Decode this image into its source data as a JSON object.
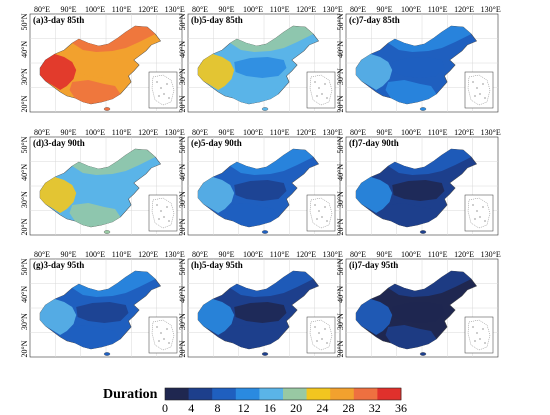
{
  "lon_ticks": [
    "80°E",
    "90°E",
    "100°E",
    "110°E",
    "120°E",
    "130°E"
  ],
  "lat_ticks": [
    "20°N",
    "30°N",
    "40°N",
    "50°N"
  ],
  "panels": [
    {
      "label": "(a)3-day 85th",
      "window_days": 3,
      "percentile": 85,
      "level": 0.78
    },
    {
      "label": "(b)5-day 85th",
      "window_days": 5,
      "percentile": 85,
      "level": 0.42
    },
    {
      "label": "(c)7-day 85th",
      "window_days": 7,
      "percentile": 85,
      "level": 0.25
    },
    {
      "label": "(d)3-day 90th",
      "window_days": 3,
      "percentile": 90,
      "level": 0.45
    },
    {
      "label": "(e)5-day 90th",
      "window_days": 5,
      "percentile": 90,
      "level": 0.22
    },
    {
      "label": "(f)7-day 90th",
      "window_days": 7,
      "percentile": 90,
      "level": 0.1
    },
    {
      "label": "(g)3-day 95th",
      "window_days": 3,
      "percentile": 95,
      "level": 0.2
    },
    {
      "label": "(h)5-day 95th",
      "window_days": 5,
      "percentile": 95,
      "level": 0.06
    },
    {
      "label": "(i)7-day 95th",
      "window_days": 7,
      "percentile": 95,
      "level": 0.03
    }
  ],
  "legend": {
    "title": "Duration",
    "ticks": [
      "0",
      "4",
      "8",
      "12",
      "16",
      "20",
      "24",
      "28",
      "32",
      "36"
    ],
    "colors": [
      "#1f2750",
      "#1d3f8c",
      "#1f5fbf",
      "#2a8ae0",
      "#5ab4e8",
      "#98c9a3",
      "#f2c61f",
      "#f2a12e",
      "#ee7040",
      "#e0302c"
    ]
  }
}
